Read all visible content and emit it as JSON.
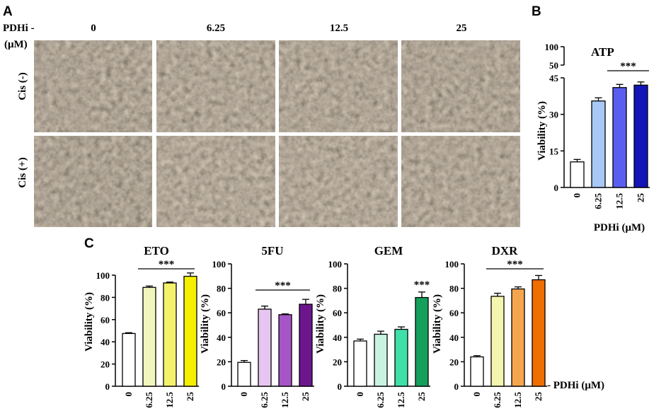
{
  "panels": {
    "a": "A",
    "b": "B",
    "c": "C"
  },
  "micrographs": {
    "pdhi_label_line1": "PDHi -",
    "pdhi_label_line2": "(μM)",
    "doses": [
      "0",
      "6.25",
      "12.5",
      "25"
    ],
    "rows": [
      "Cis (-)",
      "Cis (+)"
    ]
  },
  "chart_data": [
    {
      "type": "bar",
      "title": "ATP",
      "ylabel": "Viability (%)",
      "xlabel": "PDHi (μM)",
      "categories": [
        "0",
        "6.25",
        "12.5",
        "25"
      ],
      "values": [
        10.5,
        35.5,
        41,
        42
      ],
      "errors": [
        1.0,
        1.3,
        1.3,
        1.3
      ],
      "ylim": [
        0,
        100
      ],
      "axis_break": [
        45,
        50
      ],
      "yticks": [
        "0",
        "15",
        "30",
        "45",
        "50",
        "100"
      ],
      "colors": [
        "#ffffff",
        "#a8c8f6",
        "#5a5ef0",
        "#1414b8"
      ],
      "significance": "***"
    },
    {
      "type": "bar",
      "title": "ETO",
      "ylabel": "Viability (%)",
      "categories": [
        "0",
        "6.25",
        "12.5",
        "25"
      ],
      "values": [
        47.5,
        89,
        93,
        99
      ],
      "errors": [
        0.7,
        1.2,
        0.8,
        3.0
      ],
      "ylim": [
        0,
        100
      ],
      "yticks": [
        "0",
        "20",
        "40",
        "60",
        "80",
        "100"
      ],
      "colors": [
        "#ffffff",
        "#f3f6bc",
        "#f4f26a",
        "#f4f000"
      ],
      "significance": "***"
    },
    {
      "type": "bar",
      "title": "5FU",
      "ylabel": "Viability (%)",
      "categories": [
        "0",
        "6.25",
        "12.5",
        "25"
      ],
      "values": [
        19.5,
        63,
        58.5,
        67
      ],
      "errors": [
        1.5,
        2.5,
        0.6,
        4.0
      ],
      "ylim": [
        0,
        100
      ],
      "yticks": [
        "0",
        "20",
        "40",
        "60",
        "80",
        "100"
      ],
      "colors": [
        "#ffffff",
        "#e7c5f1",
        "#a655c8",
        "#6c168e"
      ],
      "significance": "***"
    },
    {
      "type": "bar",
      "title": "GEM",
      "ylabel": "Viability (%)",
      "categories": [
        "0",
        "6.25",
        "12.5",
        "25"
      ],
      "values": [
        37,
        42.5,
        46.5,
        72.5
      ],
      "errors": [
        1.5,
        2.5,
        2.0,
        4.5
      ],
      "ylim": [
        0,
        100
      ],
      "yticks": [
        "0",
        "20",
        "40",
        "60",
        "80",
        "100"
      ],
      "colors": [
        "#ffffff",
        "#c9f2e1",
        "#3ee0a8",
        "#14a05c"
      ],
      "significance": "***"
    },
    {
      "type": "bar",
      "title": "DXR",
      "ylabel": "Viability (%)",
      "xlabel": "- PDHi (μM)",
      "categories": [
        "0",
        "6.25",
        "12.5",
        "25"
      ],
      "values": [
        24,
        73.5,
        79.5,
        87
      ],
      "errors": [
        1.0,
        2.5,
        1.7,
        3.5
      ],
      "ylim": [
        0,
        100
      ],
      "yticks": [
        "0",
        "20",
        "40",
        "60",
        "80",
        "100"
      ],
      "colors": [
        "#ffffff",
        "#f4f6b0",
        "#f5a54e",
        "#f06e00"
      ],
      "significance": "***"
    }
  ]
}
